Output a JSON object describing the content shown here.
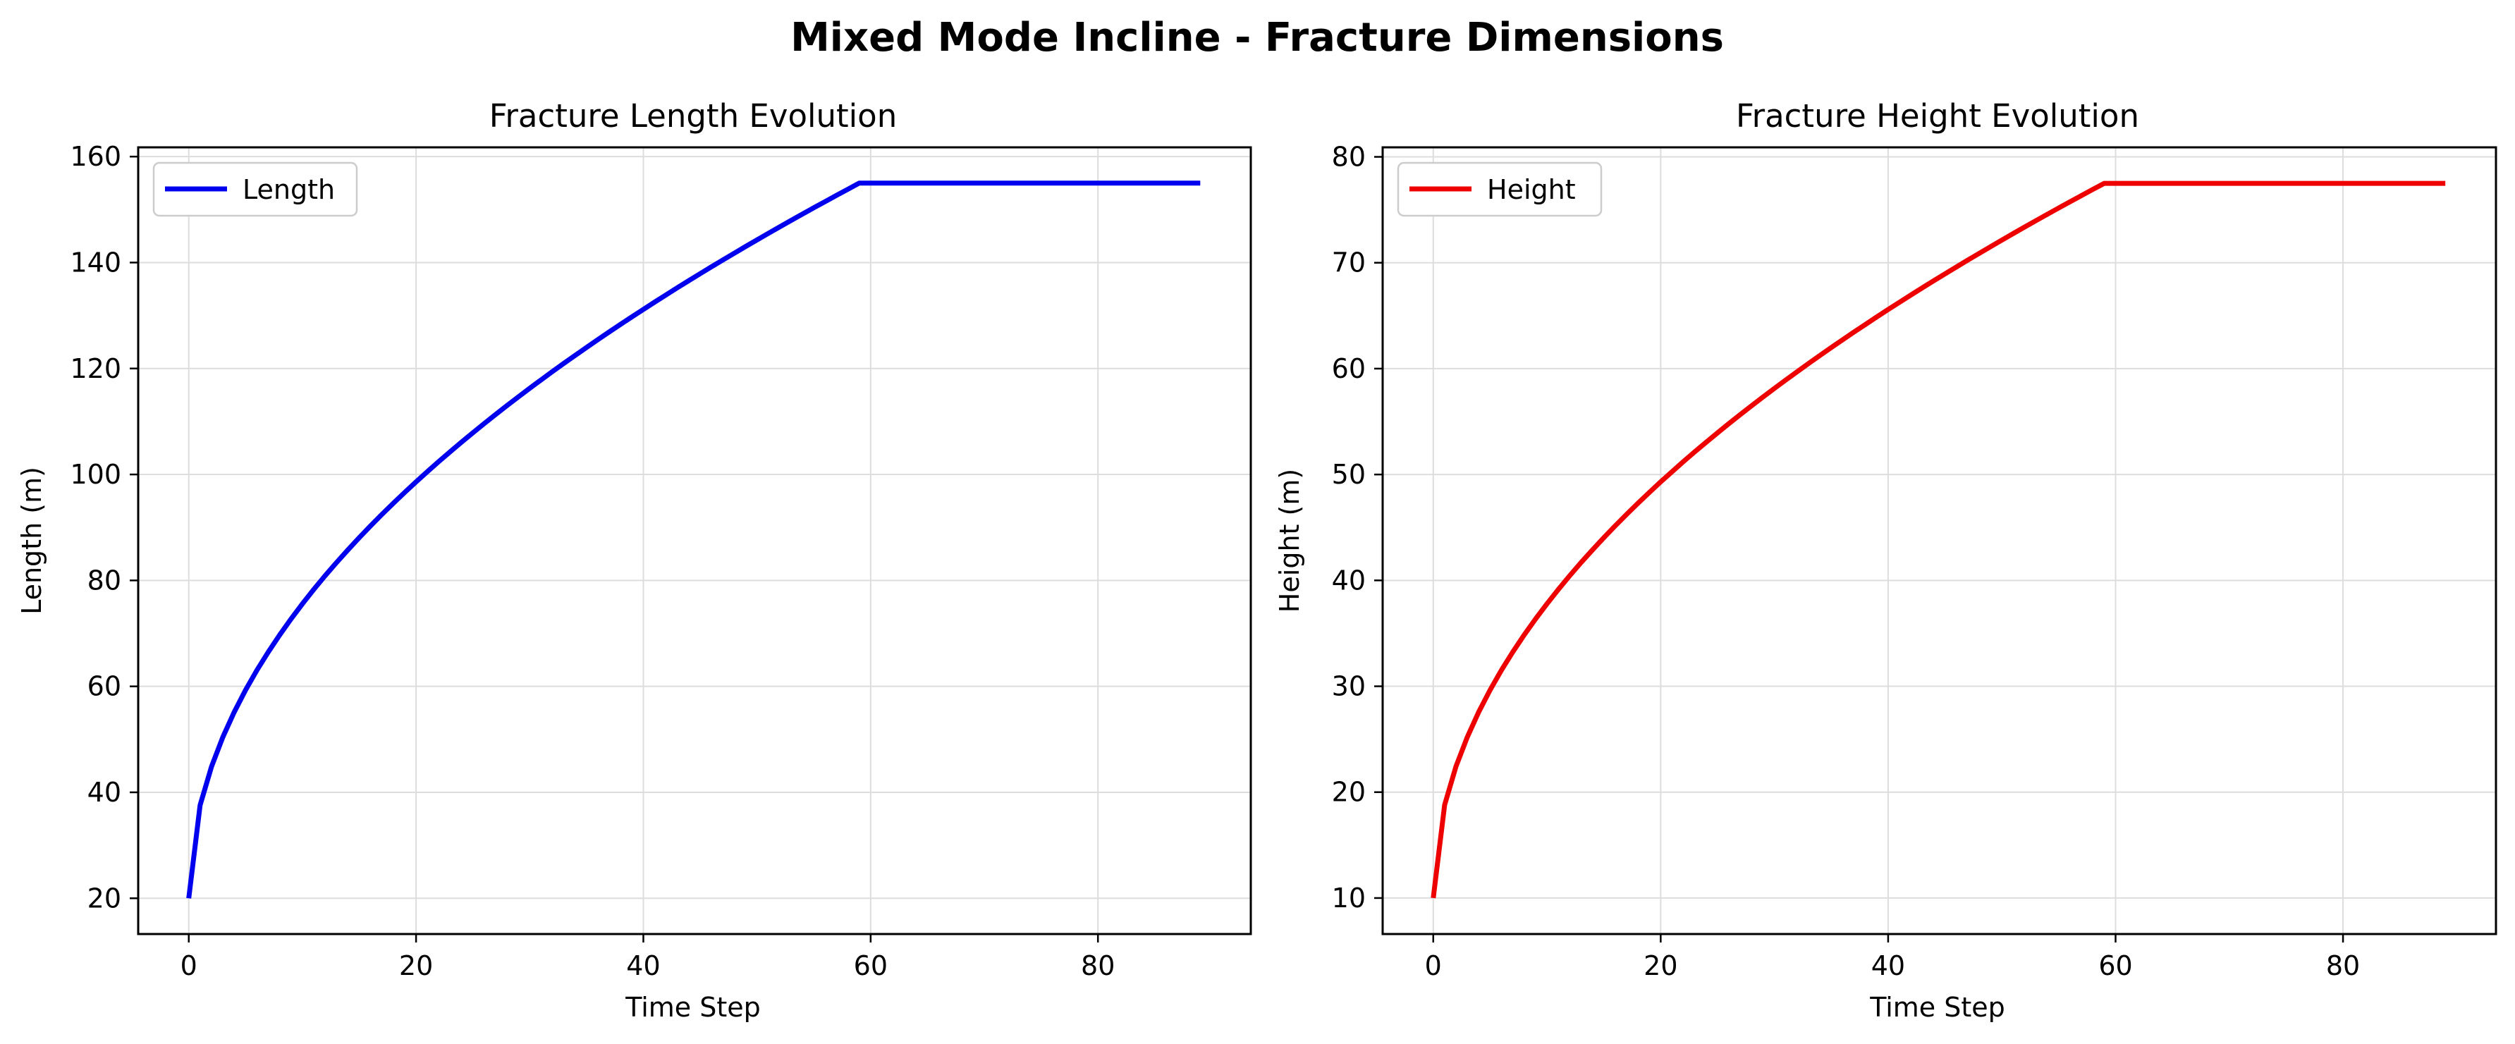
{
  "figure": {
    "title": "Mixed Mode Incline - Fracture Dimensions"
  },
  "chart_data": [
    {
      "type": "line",
      "title": "Fracture Length Evolution",
      "xlabel": "Time Step",
      "ylabel": "Length (m)",
      "xlim": [
        -4.45,
        93.45
      ],
      "ylim": [
        13.25,
        161.75
      ],
      "xticks": [
        0,
        20,
        40,
        60,
        80
      ],
      "yticks": [
        20,
        40,
        60,
        80,
        100,
        120,
        140,
        160
      ],
      "grid": true,
      "legend_position": "upper-left",
      "series": [
        {
          "name": "Length",
          "color": "#0000ee",
          "model": {
            "kind": "sqrt-growth",
            "start": 20,
            "plateau": 155,
            "growth_end_step": 59,
            "last_step": 89
          },
          "points": [
            [
              0,
              20
            ],
            [
              5,
              49.5
            ],
            [
              10,
              65.0
            ],
            [
              20,
              91.7
            ],
            [
              30,
              112.3
            ],
            [
              40,
              128.5
            ],
            [
              50,
              142.6
            ],
            [
              59,
              155
            ],
            [
              89,
              155
            ]
          ]
        }
      ]
    },
    {
      "type": "line",
      "title": "Fracture Height Evolution",
      "xlabel": "Time Step",
      "ylabel": "Height (m)",
      "xlim": [
        -4.45,
        93.45
      ],
      "ylim": [
        6.6,
        80.9
      ],
      "xticks": [
        0,
        20,
        40,
        60,
        80
      ],
      "yticks": [
        10,
        20,
        30,
        40,
        50,
        60,
        70,
        80
      ],
      "grid": true,
      "legend_position": "upper-left",
      "series": [
        {
          "name": "Height",
          "color": "#ee0000",
          "model": {
            "kind": "sqrt-growth",
            "start": 10,
            "plateau": 77.5,
            "growth_end_step": 59,
            "last_step": 89
          },
          "points": [
            [
              0,
              10
            ],
            [
              5,
              24.8
            ],
            [
              10,
              32.5
            ],
            [
              20,
              45.9
            ],
            [
              30,
              56.2
            ],
            [
              40,
              64.3
            ],
            [
              50,
              71.3
            ],
            [
              59,
              77.5
            ],
            [
              89,
              77.5
            ]
          ]
        }
      ]
    }
  ]
}
